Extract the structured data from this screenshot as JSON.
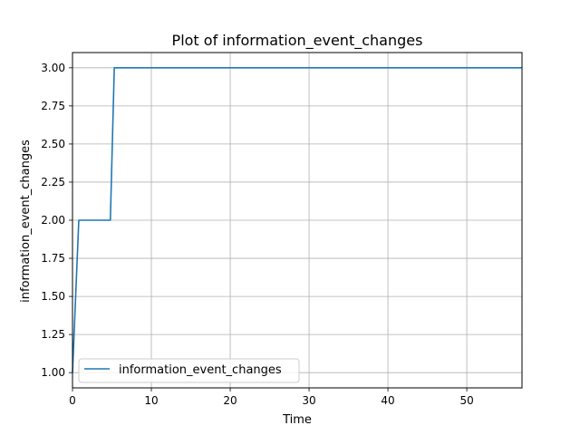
{
  "chart_data": {
    "type": "line",
    "title": "Plot of information_event_changes",
    "xlabel": "Time",
    "ylabel": "information_event_changes",
    "xlim": [
      0,
      57
    ],
    "ylim": [
      0.9,
      3.1
    ],
    "xticks": [
      0,
      10,
      20,
      30,
      40,
      50
    ],
    "xtick_labels": [
      "0",
      "10",
      "20",
      "30",
      "40",
      "50"
    ],
    "yticks": [
      1.0,
      1.25,
      1.5,
      1.75,
      2.0,
      2.25,
      2.5,
      2.75,
      3.0
    ],
    "ytick_labels": [
      "1.00",
      "1.25",
      "1.50",
      "1.75",
      "2.00",
      "2.25",
      "2.50",
      "2.75",
      "3.00"
    ],
    "grid": true,
    "legend_position": "lower-left",
    "series": [
      {
        "name": "information_event_changes",
        "color": "#1f77b4",
        "x": [
          0,
          0.8,
          4.8,
          5.3,
          57
        ],
        "y": [
          1.0,
          2.0,
          2.0,
          3.0,
          3.0
        ]
      }
    ]
  }
}
